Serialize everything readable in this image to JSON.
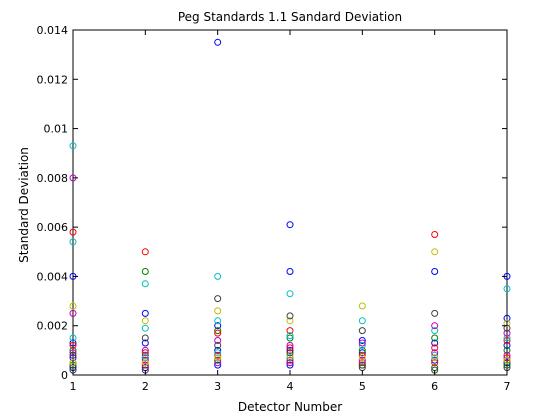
{
  "chart_data": {
    "type": "scatter",
    "title": "Peg Standards 1.1 Sandard Deviation",
    "xlabel": "Detector Number",
    "ylabel": "Standard Deviation",
    "xlim": [
      1,
      7
    ],
    "ylim": [
      0,
      0.014
    ],
    "xticks": [
      "1",
      "2",
      "3",
      "4",
      "5",
      "6",
      "7"
    ],
    "yticks": [
      "0",
      "0.002",
      "0.004",
      "0.006",
      "0.008",
      "0.01",
      "0.012",
      "0.014"
    ],
    "ytick_values": [
      0,
      0.002,
      0.004,
      0.006,
      0.008,
      0.01,
      0.012,
      0.014
    ],
    "grid": false,
    "legend": "none",
    "marker": "open-circle",
    "series": [
      {
        "color": "#0000ff",
        "points": [
          [
            1,
            0.004
          ],
          [
            1,
            0.0013
          ],
          [
            1,
            0.0007
          ],
          [
            1,
            0.0003
          ],
          [
            2,
            0.0025
          ],
          [
            2,
            0.0013
          ],
          [
            2,
            0.0007
          ],
          [
            2,
            0.0003
          ],
          [
            3,
            0.0135
          ],
          [
            3,
            0.002
          ],
          [
            3,
            0.001
          ],
          [
            3,
            0.0004
          ],
          [
            4,
            0.0061
          ],
          [
            4,
            0.0042
          ],
          [
            4,
            0.001
          ],
          [
            4,
            0.0004
          ],
          [
            5,
            0.0014
          ],
          [
            5,
            0.0009
          ],
          [
            5,
            0.0004
          ],
          [
            6,
            0.0042
          ],
          [
            6,
            0.0013
          ],
          [
            6,
            0.0006
          ],
          [
            7,
            0.004
          ],
          [
            7,
            0.0023
          ],
          [
            7,
            0.0012
          ],
          [
            7,
            0.0005
          ]
        ]
      },
      {
        "color": "#008000",
        "points": [
          [
            1,
            0.001
          ],
          [
            1,
            0.0004
          ],
          [
            2,
            0.0042
          ],
          [
            2,
            0.0008
          ],
          [
            3,
            0.0018
          ],
          [
            3,
            0.0006
          ],
          [
            4,
            0.0015
          ],
          [
            4,
            0.0005
          ],
          [
            5,
            0.001
          ],
          [
            5,
            0.0004
          ],
          [
            6,
            0.0015
          ],
          [
            6,
            0.0003
          ],
          [
            7,
            0.001
          ],
          [
            7,
            0.0004
          ]
        ]
      },
      {
        "color": "#ff0000",
        "points": [
          [
            1,
            0.0058
          ],
          [
            1,
            0.0012
          ],
          [
            1,
            0.0005
          ],
          [
            2,
            0.005
          ],
          [
            2,
            0.0009
          ],
          [
            2,
            0.0004
          ],
          [
            3,
            0.0017
          ],
          [
            3,
            0.0008
          ],
          [
            4,
            0.0018
          ],
          [
            4,
            0.0011
          ],
          [
            4,
            0.0006
          ],
          [
            5,
            0.0008
          ],
          [
            5,
            0.0005
          ],
          [
            6,
            0.0057
          ],
          [
            6,
            0.0011
          ],
          [
            6,
            0.0005
          ],
          [
            7,
            0.0014
          ],
          [
            7,
            0.0007
          ]
        ]
      },
      {
        "color": "#00bfbf",
        "points": [
          [
            1,
            0.0093
          ],
          [
            1,
            0.0054
          ],
          [
            1,
            0.0015
          ],
          [
            2,
            0.0037
          ],
          [
            2,
            0.0019
          ],
          [
            2,
            0.0007
          ],
          [
            3,
            0.004
          ],
          [
            3,
            0.0022
          ],
          [
            3,
            0.0009
          ],
          [
            4,
            0.0033
          ],
          [
            4,
            0.0016
          ],
          [
            4,
            0.0007
          ],
          [
            5,
            0.0022
          ],
          [
            5,
            0.0012
          ],
          [
            5,
            0.0006
          ],
          [
            6,
            0.0018
          ],
          [
            6,
            0.0008
          ],
          [
            7,
            0.0035
          ],
          [
            7,
            0.0015
          ],
          [
            7,
            0.0006
          ]
        ]
      },
      {
        "color": "#bf00bf",
        "points": [
          [
            1,
            0.008
          ],
          [
            1,
            0.0025
          ],
          [
            1,
            0.0009
          ],
          [
            2,
            0.001
          ],
          [
            2,
            0.0006
          ],
          [
            3,
            0.0014
          ],
          [
            3,
            0.0005
          ],
          [
            4,
            0.0012
          ],
          [
            4,
            0.0005
          ],
          [
            5,
            0.0013
          ],
          [
            5,
            0.0006
          ],
          [
            6,
            0.002
          ],
          [
            6,
            0.0009
          ],
          [
            7,
            0.0017
          ],
          [
            7,
            0.0008
          ]
        ]
      },
      {
        "color": "#bfbf00",
        "points": [
          [
            1,
            0.0028
          ],
          [
            1,
            0.0005
          ],
          [
            2,
            0.0022
          ],
          [
            2,
            0.0005
          ],
          [
            3,
            0.0026
          ],
          [
            3,
            0.0007
          ],
          [
            4,
            0.0022
          ],
          [
            4,
            0.0008
          ],
          [
            5,
            0.0028
          ],
          [
            5,
            0.0007
          ],
          [
            6,
            0.005
          ],
          [
            6,
            0.0007
          ],
          [
            7,
            0.0021
          ],
          [
            7,
            0.0006
          ]
        ]
      },
      {
        "color": "#404040",
        "points": [
          [
            1,
            0.0008
          ],
          [
            1,
            0.0002
          ],
          [
            2,
            0.0015
          ],
          [
            2,
            0.0002
          ],
          [
            3,
            0.0031
          ],
          [
            3,
            0.0012
          ],
          [
            4,
            0.0024
          ],
          [
            4,
            0.0009
          ],
          [
            5,
            0.0018
          ],
          [
            5,
            0.0003
          ],
          [
            6,
            0.0025
          ],
          [
            6,
            0.0002
          ],
          [
            7,
            0.0019
          ],
          [
            7,
            0.0003
          ]
        ]
      }
    ]
  }
}
